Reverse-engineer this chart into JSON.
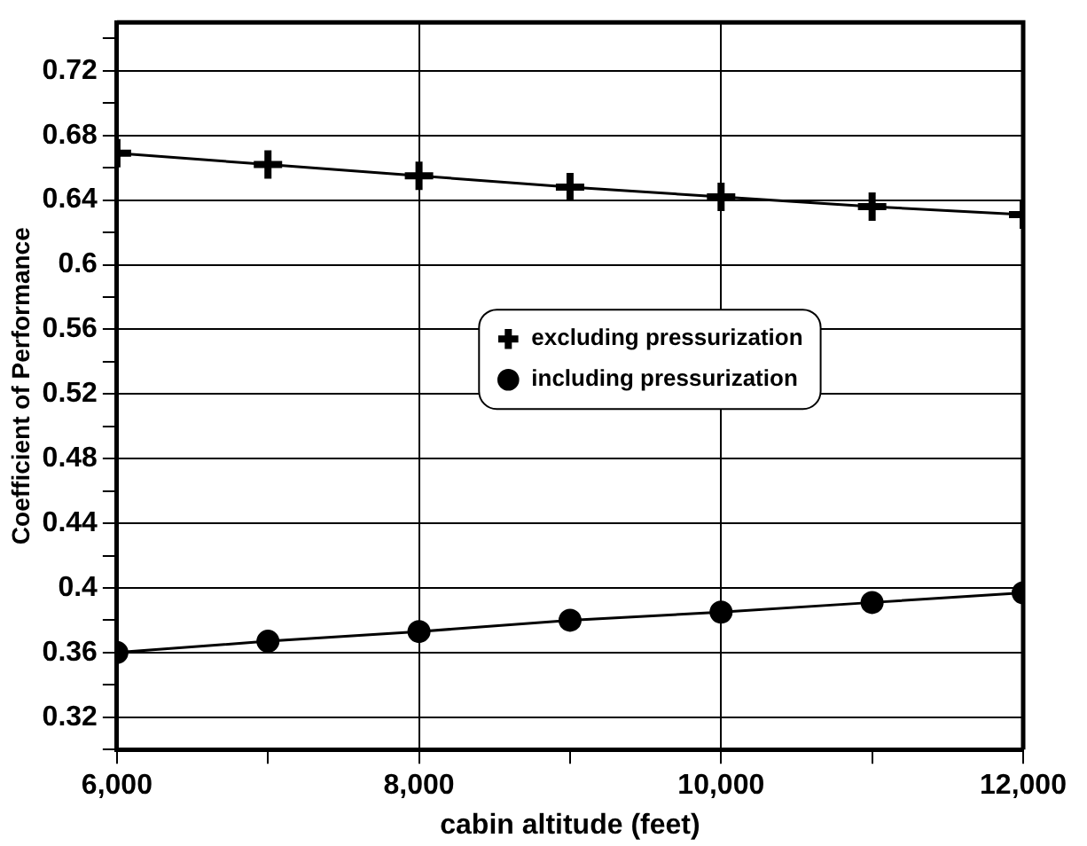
{
  "chart_data": {
    "type": "line",
    "xlabel": "cabin altitude (feet)",
    "ylabel": "Coefficient of Performance",
    "x": [
      6000,
      7000,
      8000,
      9000,
      10000,
      11000,
      12000
    ],
    "series": [
      {
        "name": "excluding pressurization",
        "color": "#000000",
        "marker": "cross",
        "values": [
          0.669,
          0.662,
          0.655,
          0.648,
          0.642,
          0.636,
          0.631
        ]
      },
      {
        "name": "including pressurization",
        "color": "#000000",
        "marker": "circle",
        "values": [
          0.36,
          0.367,
          0.373,
          0.38,
          0.385,
          0.391,
          0.397
        ]
      }
    ],
    "xlim": [
      6000,
      12000
    ],
    "xticks": [
      {
        "value": 6000,
        "label": "6,000"
      },
      {
        "value": 7000,
        "label": null
      },
      {
        "value": 8000,
        "label": "8,000"
      },
      {
        "value": 9000,
        "label": null
      },
      {
        "value": 10000,
        "label": "10,000"
      },
      {
        "value": 11000,
        "label": null
      },
      {
        "value": 12000,
        "label": "12,000"
      }
    ],
    "ylim": [
      0.3,
      0.75
    ],
    "yticks": [
      {
        "value": 0.3,
        "label": null
      },
      0.32,
      {
        "value": 0.34,
        "label": null
      },
      0.36,
      {
        "value": 0.38,
        "label": null
      },
      0.4,
      {
        "value": 0.42,
        "label": null
      },
      0.44,
      {
        "value": 0.46,
        "label": null
      },
      0.48,
      {
        "value": 0.5,
        "label": null
      },
      0.52,
      {
        "value": 0.54,
        "label": null
      },
      0.56,
      {
        "value": 0.58,
        "label": null
      },
      0.6,
      {
        "value": 0.62,
        "label": null
      },
      0.64,
      {
        "value": 0.66,
        "label": null
      },
      0.68,
      {
        "value": 0.7,
        "label": null
      },
      0.72,
      {
        "value": 0.74,
        "label": null
      }
    ],
    "grid": true,
    "legend": "center",
    "line_style": "solid"
  }
}
